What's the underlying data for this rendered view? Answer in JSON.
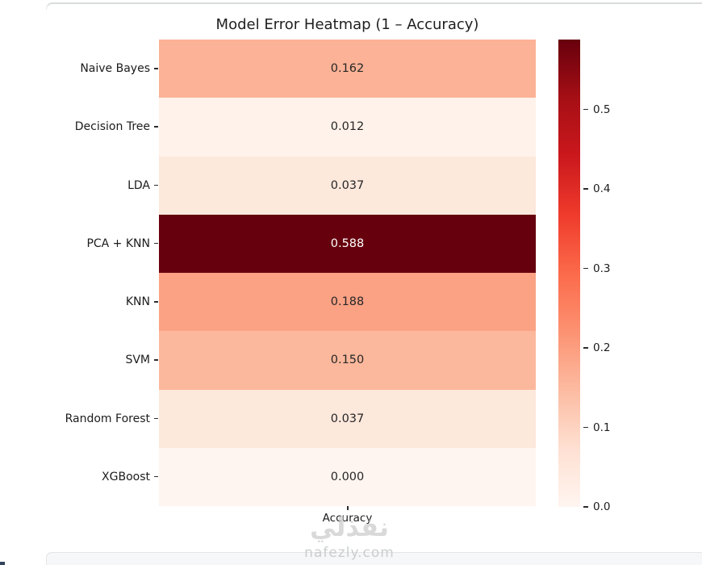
{
  "page": {
    "watermark_arabic": "نفذلي",
    "watermark_domain": "nafezly.com"
  },
  "chart_data": {
    "type": "heatmap",
    "title": "Model Error Heatmap (1 – Accuracy)",
    "rows": [
      "Naive Bayes",
      "Decision Tree",
      "LDA",
      "PCA + KNN",
      "KNN",
      "SVM",
      "Random Forest",
      "XGBoost"
    ],
    "columns": [
      "Accuracy"
    ],
    "values": [
      [
        0.162
      ],
      [
        0.012
      ],
      [
        0.037
      ],
      [
        0.588
      ],
      [
        0.188
      ],
      [
        0.15
      ],
      [
        0.037
      ],
      [
        0.0
      ]
    ],
    "value_labels": [
      "0.162",
      "0.012",
      "0.037",
      "0.588",
      "0.188",
      "0.150",
      "0.037",
      "0.000"
    ],
    "cell_colors": [
      "#fcb296",
      "#fff2ea",
      "#fde8dc",
      "#67000d",
      "#fba285",
      "#fcb89c",
      "#fde8dc",
      "#fff5f0"
    ],
    "text_colors": [
      "#262626",
      "#262626",
      "#262626",
      "#ffffff",
      "#262626",
      "#262626",
      "#262626",
      "#262626"
    ],
    "colormap": "Reds",
    "vmin": 0.0,
    "vmax": 0.588,
    "grid": false,
    "legend_position": "right-colorbar",
    "colorbar_ticks": [
      "0.0",
      "0.1",
      "0.2",
      "0.3",
      "0.4",
      "0.5"
    ],
    "colorbar_tick_values": [
      0.0,
      0.1,
      0.2,
      0.3,
      0.4,
      0.5
    ],
    "colorbar_gradient": [
      {
        "pos": 0,
        "color": "#fff5f0"
      },
      {
        "pos": 12.5,
        "color": "#fee0d2"
      },
      {
        "pos": 25,
        "color": "#fcbba1"
      },
      {
        "pos": 37.5,
        "color": "#fc9272"
      },
      {
        "pos": 50,
        "color": "#fb6a4a"
      },
      {
        "pos": 62.5,
        "color": "#ef3b2c"
      },
      {
        "pos": 75,
        "color": "#cb181d"
      },
      {
        "pos": 87.5,
        "color": "#a50f15"
      },
      {
        "pos": 100,
        "color": "#67000d"
      }
    ]
  }
}
